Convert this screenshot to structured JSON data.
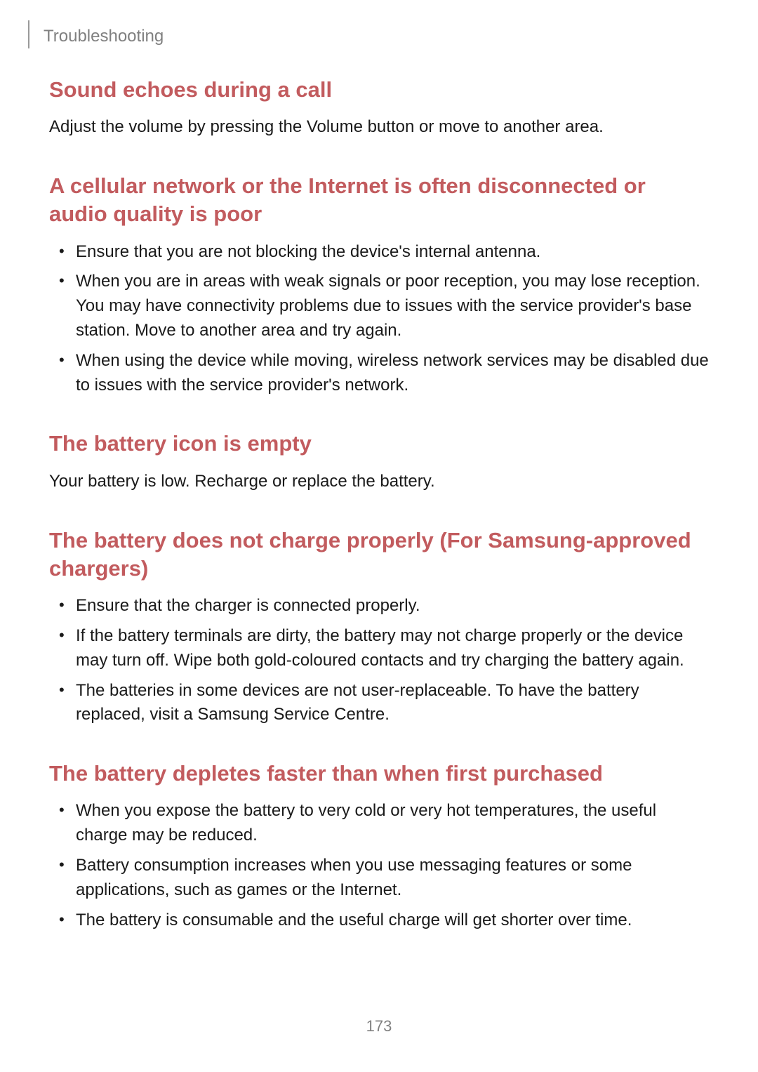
{
  "header": {
    "breadcrumb": "Troubleshooting"
  },
  "sections": [
    {
      "heading": "Sound echoes during a call",
      "body": "Adjust the volume by pressing the Volume button or move to another area.",
      "bullets": []
    },
    {
      "heading": "A cellular network or the Internet is often disconnected or audio quality is poor",
      "body": "",
      "bullets": [
        "Ensure that you are not blocking the device's internal antenna.",
        "When you are in areas with weak signals or poor reception, you may lose reception. You may have connectivity problems due to issues with the service provider's base station. Move to another area and try again.",
        "When using the device while moving, wireless network services may be disabled due to issues with the service provider's network."
      ]
    },
    {
      "heading": "The battery icon is empty",
      "body": "Your battery is low. Recharge or replace the battery.",
      "bullets": []
    },
    {
      "heading": "The battery does not charge properly (For Samsung-approved chargers)",
      "body": "",
      "bullets": [
        "Ensure that the charger is connected properly.",
        "If the battery terminals are dirty, the battery may not charge properly or the device may turn off. Wipe both gold-coloured contacts and try charging the battery again.",
        "The batteries in some devices are not user-replaceable. To have the battery replaced, visit a Samsung Service Centre."
      ]
    },
    {
      "heading": "The battery depletes faster than when first purchased",
      "body": "",
      "bullets": [
        "When you expose the battery to very cold or very hot temperatures, the useful charge may be reduced.",
        "Battery consumption increases when you use messaging features or some applications, such as games or the Internet.",
        "The battery is consumable and the useful charge will get shorter over time."
      ]
    }
  ],
  "pageNumber": "173",
  "styles": {
    "heading_color": "#c25b5e",
    "body_color": "#1a1a1a",
    "breadcrumb_color": "#808080",
    "heading_fontsize": 31,
    "body_fontsize": 24,
    "breadcrumb_fontsize": 24,
    "page_number_fontsize": 22,
    "background_color": "#ffffff"
  }
}
